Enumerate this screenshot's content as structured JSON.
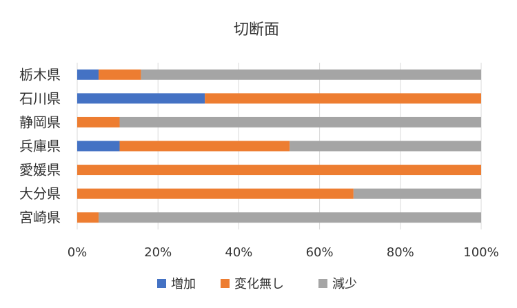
{
  "chart_data": {
    "type": "bar",
    "orientation": "horizontal",
    "stacked": "percent",
    "title": "切断面",
    "categories": [
      "栃木県",
      "石川県",
      "静岡県",
      "兵庫県",
      "愛媛県",
      "大分県",
      "宮崎県"
    ],
    "series": [
      {
        "name": "増加",
        "color": "#4472C4",
        "values": [
          5.3,
          31.6,
          0,
          10.5,
          0,
          0,
          0
        ]
      },
      {
        "name": "変化無し",
        "color": "#ED7D31",
        "values": [
          10.5,
          68.4,
          10.5,
          42.1,
          100,
          68.4,
          5.3
        ]
      },
      {
        "name": "減少",
        "color": "#A5A5A5",
        "values": [
          84.2,
          0,
          89.5,
          47.4,
          0,
          31.6,
          94.7
        ]
      }
    ],
    "xticks": [
      "0%",
      "20%",
      "40%",
      "60%",
      "80%",
      "100%"
    ],
    "xlim": [
      0,
      100
    ],
    "grid": true,
    "legend": "bottom"
  }
}
